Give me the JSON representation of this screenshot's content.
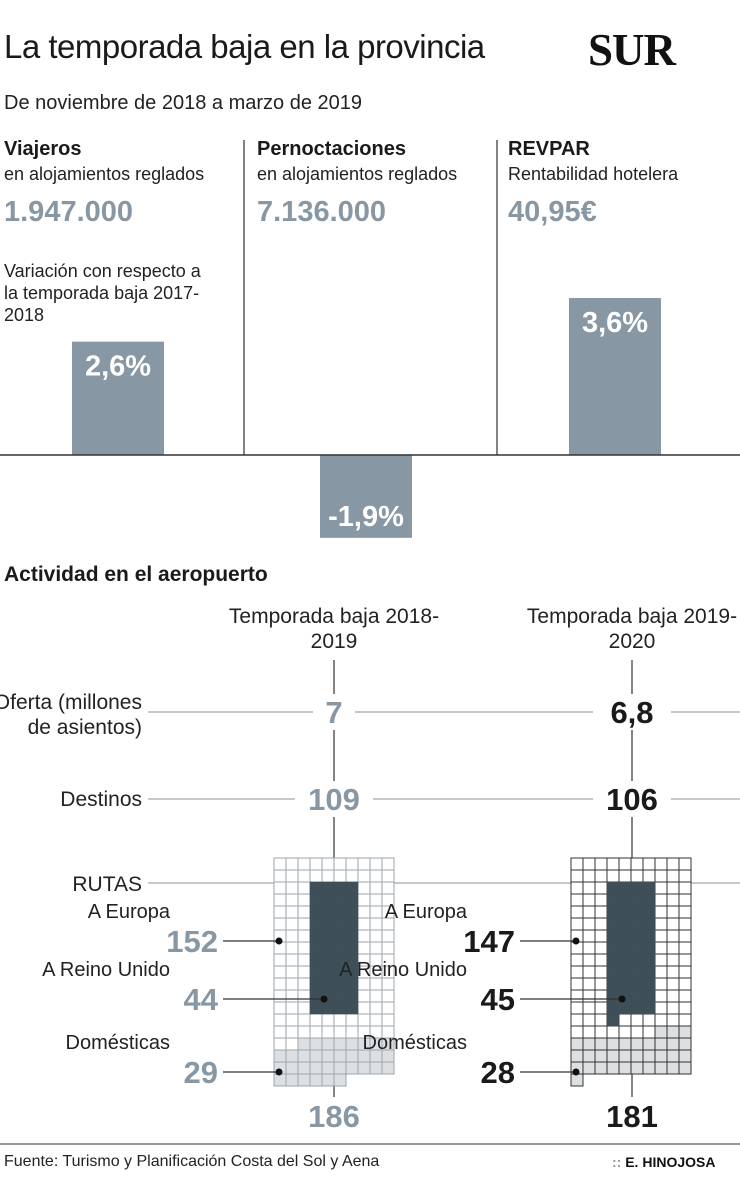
{
  "header": {
    "title": "La temporada baja en la provincia",
    "logo": "SUR",
    "subtitle": "De noviembre de 2018 a marzo de 2019"
  },
  "indicators": [
    {
      "name": "Viajeros",
      "sub": "en alojamientos reglados",
      "value": "1.947.000"
    },
    {
      "name": "Pernoctaciones",
      "sub": "en alojamientos reglados",
      "value": "7.136.000"
    },
    {
      "name": "REVPAR",
      "sub": "Rentabilidad hotelera",
      "value": "40,95€"
    }
  ],
  "variation_note": "Variación con respecto a la temporada baja 2017-2018",
  "airport": {
    "section_title": "Actividad en el aeropuerto",
    "columns": [
      "Temporada baja 2018-2019",
      "Temporada baja 2019-2020"
    ],
    "row_labels": {
      "oferta": "Oferta (millones de asientos)",
      "destinos": "Destinos",
      "rutas": "RUTAS"
    },
    "route_labels": {
      "europa": "A Europa",
      "reino_unido": "A Reino Unido",
      "domesticas": "Domésticas"
    }
  },
  "chart_data": [
    {
      "type": "bar",
      "categories": [
        "Viajeros",
        "Pernoctaciones",
        "REVPAR"
      ],
      "values": [
        2.6,
        -1.9,
        3.6
      ],
      "labels": [
        "2,6%",
        "-1,9%",
        "3,6%"
      ],
      "colors": {
        "bar": "#8797a4",
        "label": "#ffffff"
      }
    },
    {
      "type": "table",
      "columns": [
        "Temporada baja 2018-2019",
        "Temporada baja 2019-2020"
      ],
      "rows": [
        {
          "name": "Oferta (millones de asientos)",
          "values": [
            7,
            6.8
          ],
          "labels": [
            "7",
            "6,8"
          ]
        },
        {
          "name": "Destinos",
          "values": [
            109,
            106
          ],
          "labels": [
            "109",
            "106"
          ]
        }
      ],
      "colors": {
        "season1": "#8797a4",
        "season2": "#1a1a1a"
      }
    },
    {
      "type": "waffle",
      "series": [
        {
          "name": "Temporada baja 2018-2019",
          "europa": 152,
          "reino_unido": 44,
          "domesticas": 29,
          "total": 186,
          "labels": {
            "europa": "152",
            "reino_unido": "44",
            "domesticas": "29",
            "total": "186"
          }
        },
        {
          "name": "Temporada baja 2019-2020",
          "europa": 147,
          "reino_unido": 45,
          "domesticas": 28,
          "total": 181,
          "labels": {
            "europa": "147",
            "reino_unido": "45",
            "domesticas": "28",
            "total": "181"
          }
        }
      ],
      "colors": {
        "uk": "#3e4f58",
        "domestic": "#dde0e2",
        "season1_cell_border": "#9aa6ae",
        "season2_cell_border": "#333333"
      }
    }
  ],
  "footer": {
    "source": "Fuente: Turismo y Planificación Costa del Sol y Aena",
    "credit_prefix": "::",
    "credit": "E. HINOJOSA"
  }
}
